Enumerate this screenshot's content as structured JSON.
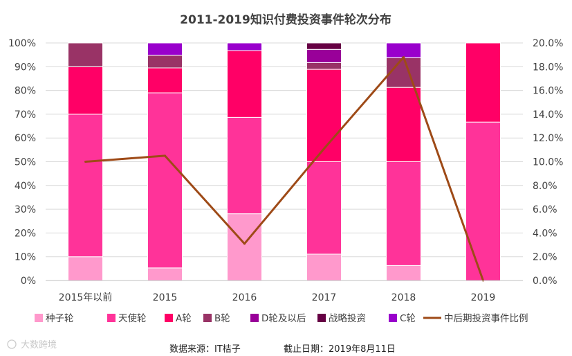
{
  "chart_data": {
    "type": "bar",
    "stacked": true,
    "title": "2011-2019知识付费投资事件轮次分布",
    "categories": [
      "2015年以前",
      "2015",
      "2016",
      "2017",
      "2018",
      "2019"
    ],
    "y_ticks_left": [
      "0%",
      "10%",
      "20%",
      "30%",
      "40%",
      "50%",
      "60%",
      "70%",
      "80%",
      "90%",
      "100%"
    ],
    "y_ticks_right": [
      "0.0%",
      "2.0%",
      "4.0%",
      "6.0%",
      "8.0%",
      "10.0%",
      "12.0%",
      "14.0%",
      "16.0%",
      "18.0%",
      "20.0%"
    ],
    "ylim_left": [
      0,
      100
    ],
    "ylim_right": [
      0,
      20
    ],
    "grid": true,
    "legend_position": "bottom",
    "series": [
      {
        "name": "种子轮",
        "color": "#ff99cc",
        "values": [
          10,
          5.3,
          28.1,
          11.1,
          6.3,
          0
        ]
      },
      {
        "name": "天使轮",
        "color": "#ff3399",
        "values": [
          60,
          73.7,
          40.6,
          38.9,
          43.7,
          66.7
        ]
      },
      {
        "name": "A轮",
        "color": "#ff0066",
        "values": [
          20,
          10.5,
          28.1,
          38.9,
          31.3,
          33.3
        ]
      },
      {
        "name": "B轮",
        "color": "#993366",
        "values": [
          10,
          5.3,
          0,
          2.8,
          12.5,
          0
        ]
      },
      {
        "name": "D轮及以后",
        "color": "#990099",
        "values": [
          0,
          0,
          0,
          5.6,
          0,
          0
        ]
      },
      {
        "name": "战略投资",
        "color": "#660044",
        "values": [
          0,
          0,
          0,
          2.7,
          0,
          0
        ]
      },
      {
        "name": "C轮",
        "color": "#9900cc",
        "values": [
          0,
          5.2,
          3.2,
          0,
          6.2,
          0
        ]
      }
    ],
    "line_series": {
      "name": "中后期投资事件比例",
      "color": "#9e4a17",
      "axis": "right",
      "values": [
        10.0,
        10.5,
        3.1,
        11.1,
        18.8,
        0.0
      ]
    }
  },
  "footer": {
    "source": "数据来源：IT桔子",
    "date": "截止日期：2019年8月11日"
  },
  "watermark": "大数跨境"
}
